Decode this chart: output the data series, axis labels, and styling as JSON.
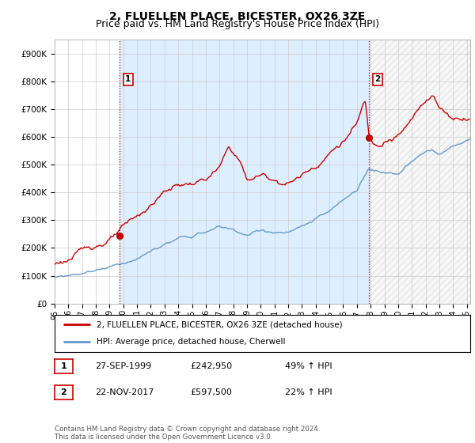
{
  "title": "2, FLUELLEN PLACE, BICESTER, OX26 3ZE",
  "subtitle": "Price paid vs. HM Land Registry's House Price Index (HPI)",
  "yticks": [
    0,
    100000,
    200000,
    300000,
    400000,
    500000,
    600000,
    700000,
    800000,
    900000
  ],
  "ylim": [
    0,
    950000
  ],
  "xlim_start": 1995.0,
  "xlim_end": 2025.25,
  "purchase1_date": 1999.74,
  "purchase1_price": 242950,
  "purchase1_label": "1",
  "purchase2_date": 2017.9,
  "purchase2_price": 597500,
  "purchase2_label": "2",
  "legend_entry1": "2, FLUELLEN PLACE, BICESTER, OX26 3ZE (detached house)",
  "legend_entry2": "HPI: Average price, detached house, Cherwell",
  "footer": "Contains HM Land Registry data © Crown copyright and database right 2024.\nThis data is licensed under the Open Government Licence v3.0.",
  "line_color_red": "#cc0000",
  "line_color_blue": "#6699cc",
  "vline_color": "#cc0000",
  "fill_color": "#ddeeff",
  "background_color": "#ffffff",
  "grid_color": "#cccccc",
  "hatch_color": "#cccccc",
  "title_fontsize": 10,
  "subtitle_fontsize": 9
}
